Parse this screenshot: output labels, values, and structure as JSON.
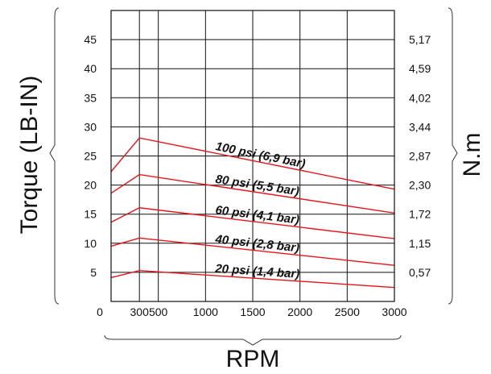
{
  "chart_data": {
    "type": "line",
    "title": "",
    "xlabel": "RPM",
    "ylabel": "Torque (LB-IN)",
    "ylabel_right": "N.m",
    "xlim": [
      0,
      3000
    ],
    "ylim": [
      0,
      50
    ],
    "grid": true,
    "x_ticks": [
      {
        "value": 0,
        "label": "0"
      },
      {
        "value": 300,
        "label": "300"
      },
      {
        "value": 500,
        "label": "500"
      },
      {
        "value": 1000,
        "label": "1000"
      },
      {
        "value": 1500,
        "label": "1500"
      },
      {
        "value": 2000,
        "label": "2000"
      },
      {
        "value": 2500,
        "label": "2500"
      },
      {
        "value": 3000,
        "label": "3000"
      }
    ],
    "x_gridlines": [
      300,
      500,
      1000,
      1500,
      2000,
      2500
    ],
    "y_ticks_left": [
      {
        "value": 5,
        "label": "5"
      },
      {
        "value": 10,
        "label": "10"
      },
      {
        "value": 15,
        "label": "15"
      },
      {
        "value": 20,
        "label": "20"
      },
      {
        "value": 25,
        "label": "25"
      },
      {
        "value": 30,
        "label": "30"
      },
      {
        "value": 35,
        "label": "35"
      },
      {
        "value": 40,
        "label": "40"
      },
      {
        "value": 45,
        "label": "45"
      }
    ],
    "y_ticks_right": [
      {
        "value": 5,
        "label": "0,57"
      },
      {
        "value": 10,
        "label": "1,15"
      },
      {
        "value": 15,
        "label": "1,72"
      },
      {
        "value": 20,
        "label": "2,30"
      },
      {
        "value": 25,
        "label": "2,87"
      },
      {
        "value": 30,
        "label": "3,44"
      },
      {
        "value": 35,
        "label": "4,02"
      },
      {
        "value": 40,
        "label": "4,59"
      },
      {
        "value": 45,
        "label": "5,17"
      }
    ],
    "line_color": "#e8141b",
    "series": [
      {
        "name": "100 psi (6,9 bar)",
        "x": [
          0,
          300,
          3000
        ],
        "y": [
          22.3,
          28.1,
          19.3
        ]
      },
      {
        "name": "80 psi (5,5 bar)",
        "x": [
          0,
          300,
          3000
        ],
        "y": [
          18.6,
          21.8,
          15.2
        ]
      },
      {
        "name": "60 psi (4,1 bar)",
        "x": [
          0,
          300,
          3000
        ],
        "y": [
          13.6,
          16.1,
          10.8
        ]
      },
      {
        "name": "40 psi (2,8 bar)",
        "x": [
          0,
          300,
          3000
        ],
        "y": [
          9.5,
          10.9,
          6.2
        ]
      },
      {
        "name": "20 psi (1,4 bar)",
        "x": [
          0,
          300,
          3000
        ],
        "y": [
          4.1,
          5.3,
          2.4
        ]
      }
    ]
  }
}
